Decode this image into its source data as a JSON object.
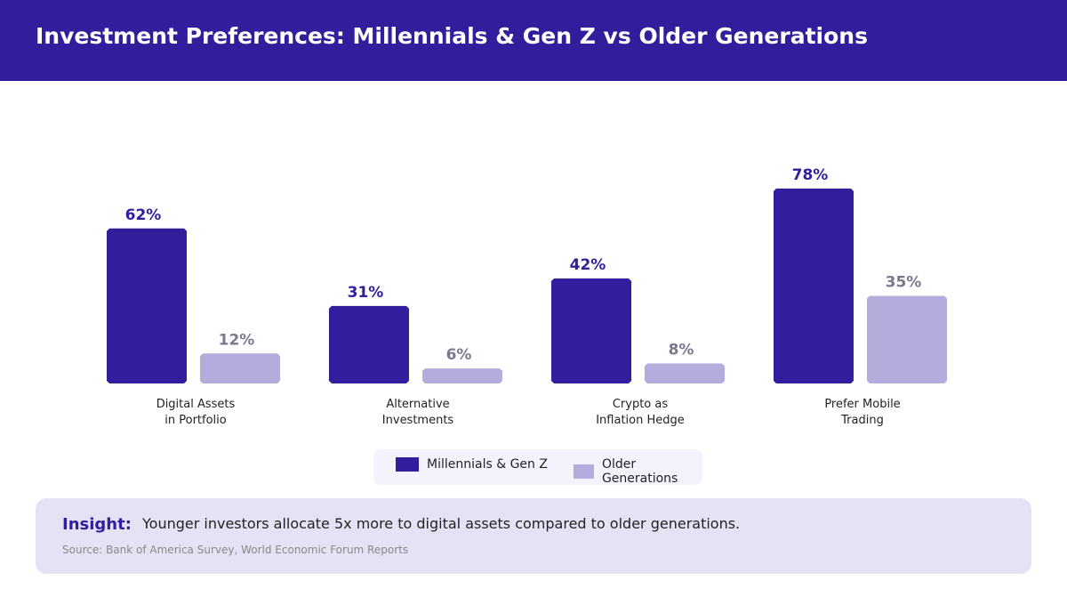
{
  "header": {
    "title": "Investment Preferences: Millennials & Gen Z vs Older Generations"
  },
  "chart_data": {
    "type": "bar",
    "categories": [
      [
        "Digital Assets",
        "in Portfolio"
      ],
      [
        "Alternative",
        "Investments"
      ],
      [
        "Crypto as",
        "Inflation Hedge"
      ],
      [
        "Prefer Mobile",
        "Trading"
      ]
    ],
    "series": [
      {
        "name": "Millennials & Gen Z",
        "values": [
          62,
          31,
          42,
          78
        ],
        "labels": [
          "62%",
          "31%",
          "42%",
          "78%"
        ],
        "color": "#321e9c",
        "label_color": "#321e9c"
      },
      {
        "name": "Older Generations",
        "values": [
          12,
          6,
          8,
          35
        ],
        "labels": [
          "12%",
          "6%",
          "8%",
          "35%"
        ],
        "color": "#b4acdc",
        "label_color": "#7a7890"
      }
    ],
    "ylim": [
      0,
      100
    ],
    "grid": false,
    "legend_position": "bottom"
  },
  "legend": {
    "items": [
      "Millennials & Gen Z",
      "Older Generations"
    ]
  },
  "insight": {
    "label": "Insight:",
    "text": "Younger investors allocate 5x more to digital assets compared to older generations.",
    "source": "Source: Bank of America Survey, World Economic Forum Reports"
  }
}
